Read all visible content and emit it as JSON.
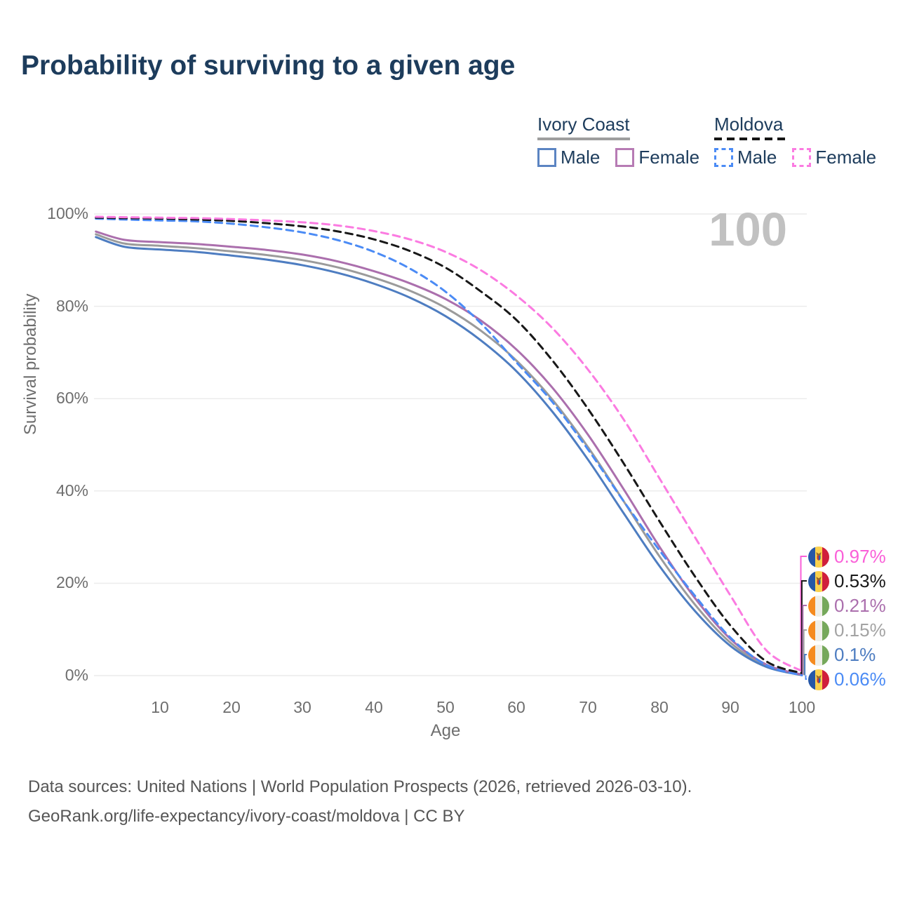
{
  "title": "Probability of surviving to a given age",
  "legend": {
    "groups": [
      {
        "label": "Ivory Coast",
        "line_style": "solid",
        "underline_color": "#9e9e9e",
        "items": [
          {
            "label": "Male",
            "color": "#4e7dc1"
          },
          {
            "label": "Female",
            "color": "#ab6fad"
          }
        ]
      },
      {
        "label": "Moldova",
        "line_style": "dashed",
        "underline_color": "#151515",
        "items": [
          {
            "label": "Male",
            "color": "#4b8bf5"
          },
          {
            "label": "Female",
            "color": "#fb7be1"
          }
        ]
      }
    ]
  },
  "chart_data": {
    "type": "line",
    "title": "Probability of surviving to a given age",
    "xlabel": "Age",
    "ylabel": "Survival probability",
    "xlim": [
      0,
      100
    ],
    "ylim": [
      0,
      100
    ],
    "grid": "horizontal-only",
    "grid_color": "#ececec",
    "hover_age_label": "100",
    "x_ticks": [
      {
        "value": 10,
        "label": "10"
      },
      {
        "value": 20,
        "label": "20"
      },
      {
        "value": 30,
        "label": "30"
      },
      {
        "value": 40,
        "label": "40"
      },
      {
        "value": 50,
        "label": "50"
      },
      {
        "value": 60,
        "label": "60"
      },
      {
        "value": 70,
        "label": "70"
      },
      {
        "value": 80,
        "label": "80"
      },
      {
        "value": 90,
        "label": "90"
      },
      {
        "value": 100,
        "label": "100"
      }
    ],
    "y_ticks": [
      {
        "value": 0,
        "label": "0%"
      },
      {
        "value": 20,
        "label": "20%"
      },
      {
        "value": 40,
        "label": "40%"
      },
      {
        "value": 60,
        "label": "60%"
      },
      {
        "value": 80,
        "label": "80%"
      },
      {
        "value": 100,
        "label": "100%"
      }
    ],
    "x": [
      1,
      5,
      10,
      15,
      20,
      25,
      30,
      35,
      40,
      45,
      50,
      55,
      60,
      65,
      70,
      75,
      80,
      85,
      90,
      95,
      100
    ],
    "series": [
      {
        "name": "Ivory Coast Both sexes",
        "country": "Ivory Coast",
        "sex": "Both",
        "color": "#9b9b9b",
        "dashed": false,
        "values": [
          95.6,
          93.6,
          93.1,
          92.6,
          91.9,
          91.1,
          90.0,
          88.4,
          86.2,
          83.4,
          79.7,
          74.7,
          68.2,
          59.8,
          49.5,
          37.8,
          25.9,
          15.4,
          7.1,
          2.1,
          0.15
        ]
      },
      {
        "name": "Ivory Coast Male",
        "country": "Ivory Coast",
        "sex": "Male",
        "color": "#4e7dc1",
        "dashed": false,
        "values": [
          95.0,
          92.9,
          92.3,
          91.8,
          91.0,
          90.1,
          88.9,
          87.2,
          84.9,
          81.9,
          77.9,
          72.6,
          65.9,
          57.2,
          46.8,
          35.2,
          23.8,
          14.0,
          6.4,
          1.9,
          0.1
        ]
      },
      {
        "name": "Ivory Coast Female",
        "country": "Ivory Coast",
        "sex": "Female",
        "color": "#ab6fad",
        "dashed": false,
        "values": [
          96.2,
          94.4,
          93.9,
          93.5,
          92.9,
          92.2,
          91.2,
          89.7,
          87.6,
          85.0,
          81.6,
          76.9,
          70.6,
          62.4,
          52.2,
          40.4,
          28.0,
          16.8,
          7.9,
          2.4,
          0.21
        ]
      },
      {
        "name": "Moldova Male",
        "country": "Moldova",
        "sex": "Male",
        "color": "#4b8bf5",
        "dashed": true,
        "values": [
          99.0,
          98.8,
          98.6,
          98.4,
          97.9,
          97.1,
          96.0,
          94.3,
          91.8,
          88.2,
          83.2,
          76.3,
          67.8,
          59.3,
          49.0,
          37.8,
          27.2,
          17.3,
          8.2,
          2.3,
          0.06
        ]
      },
      {
        "name": "Moldova Both sexes",
        "country": "Moldova",
        "sex": "Both",
        "color": "#181818",
        "dashed": true,
        "values": [
          99.2,
          99.1,
          99.0,
          98.8,
          98.5,
          98.0,
          97.3,
          96.2,
          94.5,
          92.0,
          88.4,
          83.2,
          77.0,
          68.3,
          57.8,
          46.0,
          33.5,
          21.5,
          10.8,
          3.1,
          0.53
        ]
      },
      {
        "name": "Moldova Female",
        "country": "Moldova",
        "sex": "Female",
        "color": "#fb7be1",
        "dashed": true,
        "values": [
          99.4,
          99.3,
          99.2,
          99.1,
          98.9,
          98.6,
          98.2,
          97.5,
          96.3,
          94.5,
          91.8,
          87.8,
          82.3,
          75.3,
          66.3,
          55.5,
          42.8,
          30.0,
          17.3,
          5.5,
          0.97
        ]
      }
    ]
  },
  "end_labels": {
    "items": [
      {
        "series": "Moldova Female",
        "value": "0.97%",
        "color": "#fa5fd8",
        "flag": "moldova-flag"
      },
      {
        "series": "Moldova Both sexes",
        "value": "0.53%",
        "color": "#181818",
        "flag": "moldova-flag"
      },
      {
        "series": "Ivory Coast Female",
        "value": "0.21%",
        "color": "#ab6fad",
        "flag": "ivory-coast-flag"
      },
      {
        "series": "Ivory Coast Both sexes",
        "value": "0.15%",
        "color": "#a3a3a3",
        "flag": "ivory-coast-flag"
      },
      {
        "series": "Ivory Coast Male",
        "value": "0.1%",
        "color": "#4e7dc1",
        "flag": "ivory-coast-flag"
      },
      {
        "series": "Moldova Male",
        "value": "0.06%",
        "color": "#4b8bf5",
        "flag": "moldova-flag"
      }
    ]
  },
  "footer": {
    "line1": "Data sources: United Nations | World Population Prospects (2026, retrieved 2026-03-10).",
    "line2": "GeoRank.org/life-expectancy/ivory-coast/moldova | CC BY"
  }
}
